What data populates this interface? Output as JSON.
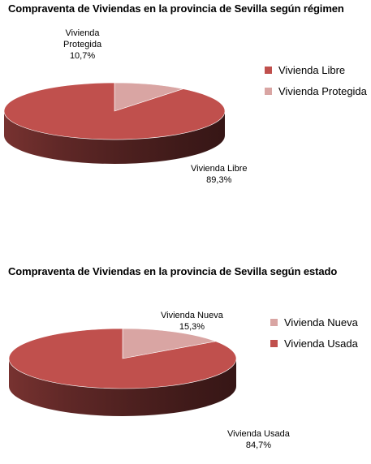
{
  "chart_data": [
    {
      "type": "pie",
      "title": "Compraventa de Viviendas en la provincia de Sevilla según régimen",
      "slices": [
        {
          "name": "Vivienda Libre",
          "label_lines": [
            "Vivienda Libre"
          ],
          "value": 89.3,
          "value_label": "89,3%",
          "color": "#c0504d"
        },
        {
          "name": "Vivienda Protegida",
          "label_lines": [
            "Vivienda",
            "Protegida"
          ],
          "value": 10.7,
          "value_label": "10,7%",
          "color": "#d9a5a3"
        }
      ],
      "legend": [
        "Vivienda Libre",
        "Vivienda Protegida"
      ],
      "legend_position": "right",
      "style": "3d"
    },
    {
      "type": "pie",
      "title": "Compraventa de Viviendas en la provincia de Sevilla según estado",
      "slices": [
        {
          "name": "Vivienda Nueva",
          "label_lines": [
            "Vivienda Nueva"
          ],
          "value": 15.3,
          "value_label": "15,3%",
          "color": "#d9a5a3"
        },
        {
          "name": "Vivienda Usada",
          "label_lines": [
            "Vivienda Usada"
          ],
          "value": 84.7,
          "value_label": "84,7%",
          "color": "#c0504d"
        }
      ],
      "legend": [
        "Vivienda Nueva",
        "Vivienda Usada"
      ],
      "legend_position": "right",
      "style": "3d"
    }
  ]
}
